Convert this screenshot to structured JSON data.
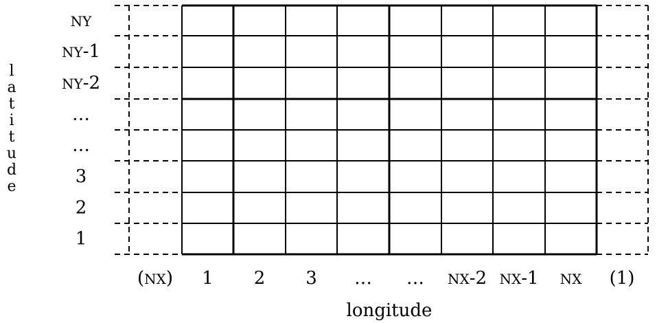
{
  "row_labels": [
    "NY",
    "NY-1",
    "NY-2",
    "…",
    "…",
    "3",
    "2",
    "1"
  ],
  "col_labels": [
    "1",
    "2",
    "3",
    "…",
    "…",
    "NX-2",
    "NX-1",
    "NX"
  ],
  "left_halo_label": "(NX)",
  "right_halo_label": "(1)",
  "x_axis_label": "longitude",
  "y_axis_label": "latitude",
  "y_axis_letters": [
    "l",
    "a",
    "t",
    "i",
    "t",
    "u",
    "d",
    "e"
  ]
}
